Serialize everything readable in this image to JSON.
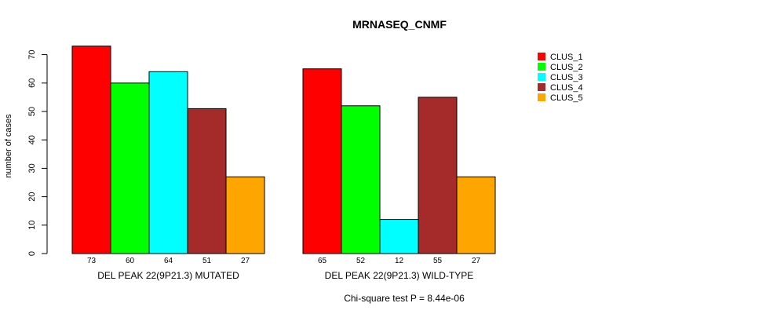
{
  "chart_data": {
    "type": "bar",
    "title": "MRNASEQ_CNMF",
    "xlabel": "",
    "ylabel": "number of cases",
    "ylim": [
      0,
      70
    ],
    "yticks": [
      0,
      10,
      20,
      30,
      40,
      50,
      60,
      70
    ],
    "groups": [
      "DEL PEAK 22(9P21.3) MUTATED",
      "DEL PEAK 22(9P21.3) WILD-TYPE"
    ],
    "series": [
      {
        "name": "CLUS_1",
        "color": "#ff0000",
        "values": [
          73,
          65
        ]
      },
      {
        "name": "CLUS_2",
        "color": "#00ff00",
        "values": [
          60,
          52
        ]
      },
      {
        "name": "CLUS_3",
        "color": "#00ffff",
        "values": [
          64,
          12
        ]
      },
      {
        "name": "CLUS_4",
        "color": "#a52a2a",
        "values": [
          51,
          55
        ]
      },
      {
        "name": "CLUS_5",
        "color": "#ffa500",
        "values": [
          27,
          27
        ]
      }
    ],
    "legend_position": "top-right",
    "grid": false,
    "caption": "Chi-square test P = 8.44e-06"
  }
}
